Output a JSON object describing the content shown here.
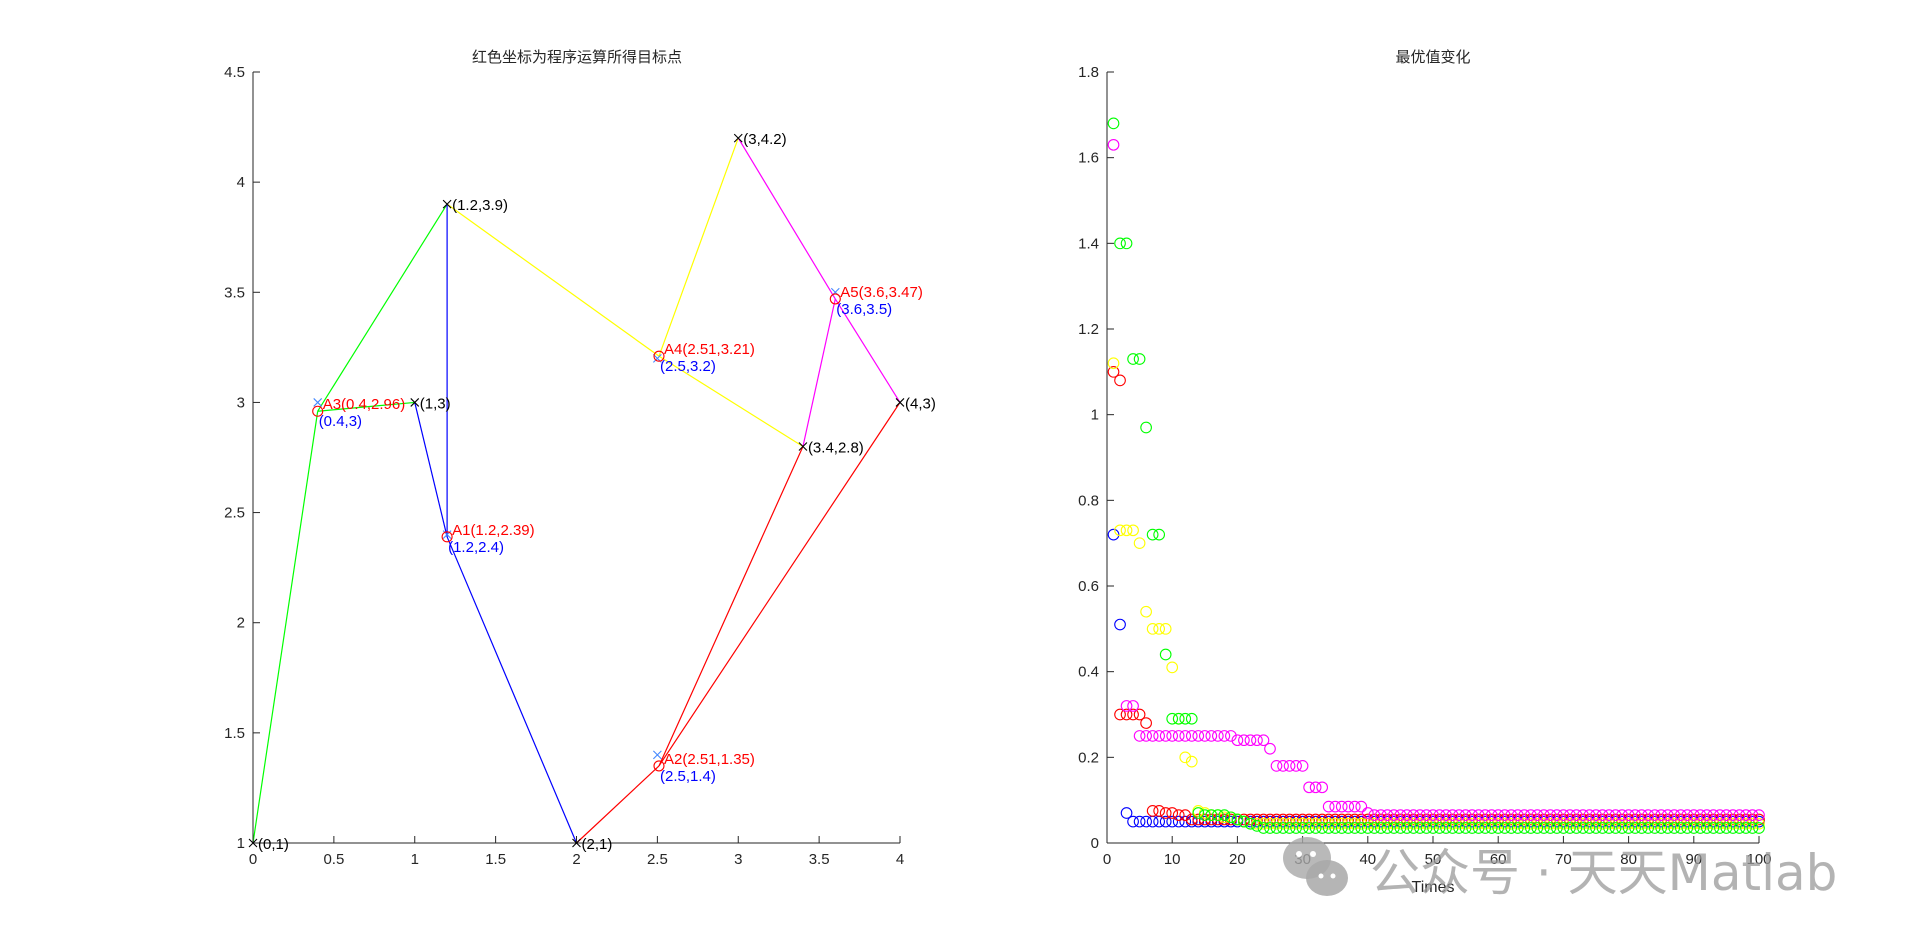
{
  "chart_data": [
    {
      "type": "line",
      "title": "红色坐标为程序运算所得目标点",
      "xlabel": "",
      "ylabel": "",
      "xlim": [
        0,
        4
      ],
      "ylim": [
        1,
        4.5
      ],
      "xticks": [
        "0",
        "0.5",
        "1",
        "1.5",
        "2",
        "2.5",
        "3",
        "3.5",
        "4"
      ],
      "yticks": [
        "1",
        "1.5",
        "2",
        "2.5",
        "3",
        "3.5",
        "4",
        "4.5"
      ],
      "grid": false,
      "fixed_points": [
        {
          "x": 0,
          "y": 1,
          "label": "(0,1)"
        },
        {
          "x": 1,
          "y": 3,
          "label": "(1,3)"
        },
        {
          "x": 1.2,
          "y": 3.9,
          "label": "(1.2,3.9)"
        },
        {
          "x": 2,
          "y": 1,
          "label": "(2,1)"
        },
        {
          "x": 3,
          "y": 4.2,
          "label": "(3,4.2)"
        },
        {
          "x": 3.4,
          "y": 2.8,
          "label": "(3.4,2.8)"
        },
        {
          "x": 4,
          "y": 3,
          "label": "(4,3)"
        }
      ],
      "computed_points": [
        {
          "name": "A1",
          "x": 1.2,
          "y": 2.39,
          "label": "A1(1.2,2.39)",
          "true_label": "(1.2,2.4)",
          "true_x": 1.2,
          "true_y": 2.4
        },
        {
          "name": "A2",
          "x": 2.51,
          "y": 1.35,
          "label": "A2(2.51,1.35)",
          "true_label": "(2.5,1.4)",
          "true_x": 2.5,
          "true_y": 1.4
        },
        {
          "name": "A3",
          "x": 0.4,
          "y": 2.96,
          "label": "A3(0.4,2.96)",
          "true_label": "(0.4,3)",
          "true_x": 0.4,
          "true_y": 3
        },
        {
          "name": "A4",
          "x": 2.51,
          "y": 3.21,
          "label": "A4(2.51,3.21)",
          "true_label": "(2.5,3.2)",
          "true_x": 2.5,
          "true_y": 3.2
        },
        {
          "name": "A5",
          "x": 3.6,
          "y": 3.47,
          "label": "A5(3.6,3.47)",
          "true_label": "(3.6,3.5)",
          "true_x": 3.6,
          "true_y": 3.5
        }
      ],
      "series": [
        {
          "name": "A3 links",
          "color": "#00ff00",
          "segments": [
            [
              [
                0,
                1
              ],
              [
                0.4,
                2.96
              ]
            ],
            [
              [
                0.4,
                2.96
              ],
              [
                1.2,
                3.9
              ]
            ],
            [
              [
                0.4,
                2.96
              ],
              [
                1,
                3
              ]
            ]
          ]
        },
        {
          "name": "A1 links",
          "color": "#0000ff",
          "segments": [
            [
              [
                1,
                3
              ],
              [
                1.2,
                2.39
              ]
            ],
            [
              [
                1.2,
                2.39
              ],
              [
                2,
                1
              ]
            ],
            [
              [
                1.2,
                3.9
              ],
              [
                1.2,
                2.39
              ]
            ]
          ]
        },
        {
          "name": "A4 links",
          "color": "#ffff00",
          "segments": [
            [
              [
                1.2,
                3.9
              ],
              [
                2.51,
                3.21
              ]
            ],
            [
              [
                2.51,
                3.21
              ],
              [
                3,
                4.2
              ]
            ],
            [
              [
                2.51,
                3.21
              ],
              [
                3.4,
                2.8
              ]
            ]
          ]
        },
        {
          "name": "A5 links",
          "color": "#ff00ff",
          "segments": [
            [
              [
                3,
                4.2
              ],
              [
                3.6,
                3.47
              ]
            ],
            [
              [
                3.6,
                3.47
              ],
              [
                4,
                3
              ]
            ],
            [
              [
                3.6,
                3.47
              ],
              [
                3.4,
                2.8
              ]
            ]
          ]
        },
        {
          "name": "A2 links",
          "color": "#ff0000",
          "segments": [
            [
              [
                2,
                1
              ],
              [
                2.51,
                1.35
              ]
            ],
            [
              [
                2.51,
                1.35
              ],
              [
                3.4,
                2.8
              ]
            ],
            [
              [
                2.51,
                1.35
              ],
              [
                4,
                3
              ]
            ]
          ]
        }
      ],
      "colors": {
        "computed_label": "#ff0000",
        "true_label": "#0000ff",
        "fixed_label": "#000000"
      }
    },
    {
      "type": "scatter",
      "title": "最优值变化",
      "xlabel": "Times",
      "ylabel": "",
      "xlim": [
        0,
        100
      ],
      "ylim": [
        0,
        1.8
      ],
      "xticks": [
        "0",
        "10",
        "20",
        "30",
        "40",
        "50",
        "60",
        "70",
        "80",
        "90",
        "100"
      ],
      "yticks": [
        "0",
        "0.2",
        "0.4",
        "0.6",
        "0.8",
        "1",
        "1.2",
        "1.4",
        "1.6",
        "1.8"
      ],
      "grid": false,
      "marker": "o",
      "series": [
        {
          "name": "blue",
          "color": "#0000ff",
          "points": [
            [
              1,
              0.72
            ],
            [
              2,
              0.51
            ],
            [
              3,
              0.07
            ],
            [
              4,
              0.05
            ],
            [
              5,
              0.05
            ],
            [
              6,
              0.05
            ],
            [
              7,
              0.05
            ],
            [
              8,
              0.05
            ],
            [
              9,
              0.05
            ],
            [
              10,
              0.05
            ],
            [
              11,
              0.05
            ],
            [
              12,
              0.05
            ],
            [
              13,
              0.05
            ],
            [
              14,
              0.05
            ],
            [
              15,
              0.05
            ],
            [
              16,
              0.05
            ],
            [
              17,
              0.05
            ],
            [
              18,
              0.05
            ],
            [
              19,
              0.05
            ],
            [
              20,
              0.05
            ]
          ],
          "tail_from": 21,
          "tail_value": 0.05
        },
        {
          "name": "red",
          "color": "#ff0000",
          "points": [
            [
              1,
              1.1
            ],
            [
              2,
              1.08
            ],
            [
              2,
              0.3
            ],
            [
              3,
              0.3
            ],
            [
              4,
              0.3
            ],
            [
              5,
              0.3
            ],
            [
              6,
              0.28
            ],
            [
              7,
              0.075
            ],
            [
              8,
              0.075
            ],
            [
              9,
              0.07
            ],
            [
              10,
              0.07
            ],
            [
              11,
              0.065
            ],
            [
              12,
              0.065
            ],
            [
              13,
              0.055
            ],
            [
              14,
              0.055
            ],
            [
              15,
              0.055
            ],
            [
              16,
              0.055
            ],
            [
              17,
              0.055
            ],
            [
              18,
              0.055
            ],
            [
              19,
              0.055
            ],
            [
              20,
              0.055
            ]
          ],
          "tail_from": 21,
          "tail_value": 0.055
        },
        {
          "name": "yellow",
          "color": "#ffff00",
          "points": [
            [
              1,
              1.12
            ],
            [
              2,
              0.73
            ],
            [
              3,
              0.73
            ],
            [
              4,
              0.73
            ],
            [
              5,
              0.7
            ],
            [
              6,
              0.54
            ],
            [
              7,
              0.5
            ],
            [
              8,
              0.5
            ],
            [
              9,
              0.5
            ],
            [
              10,
              0.41
            ],
            [
              11,
              0.29
            ],
            [
              12,
              0.2
            ],
            [
              13,
              0.19
            ],
            [
              14,
              0.075
            ],
            [
              15,
              0.07
            ],
            [
              16,
              0.065
            ],
            [
              17,
              0.065
            ],
            [
              18,
              0.06
            ],
            [
              19,
              0.06
            ],
            [
              20,
              0.055
            ],
            [
              21,
              0.05
            ],
            [
              22,
              0.045
            ]
          ],
          "tail_from": 23,
          "tail_value": 0.045
        },
        {
          "name": "green",
          "color": "#00ff00",
          "points": [
            [
              1,
              1.68
            ],
            [
              2,
              1.4
            ],
            [
              3,
              1.4
            ],
            [
              4,
              1.13
            ],
            [
              5,
              1.13
            ],
            [
              6,
              0.97
            ],
            [
              7,
              0.72
            ],
            [
              8,
              0.72
            ],
            [
              9,
              0.44
            ],
            [
              10,
              0.29
            ],
            [
              11,
              0.29
            ],
            [
              12,
              0.29
            ],
            [
              13,
              0.29
            ],
            [
              14,
              0.07
            ],
            [
              15,
              0.065
            ],
            [
              16,
              0.065
            ],
            [
              17,
              0.065
            ],
            [
              18,
              0.065
            ],
            [
              19,
              0.06
            ],
            [
              20,
              0.055
            ],
            [
              21,
              0.05
            ],
            [
              22,
              0.045
            ],
            [
              23,
              0.04
            ]
          ],
          "tail_from": 24,
          "tail_value": 0.035
        },
        {
          "name": "magenta",
          "color": "#ff00ff",
          "points": [
            [
              1,
              1.63
            ],
            [
              3,
              0.32
            ],
            [
              4,
              0.32
            ],
            [
              5,
              0.25
            ],
            [
              6,
              0.25
            ],
            [
              7,
              0.25
            ],
            [
              8,
              0.25
            ],
            [
              9,
              0.25
            ],
            [
              10,
              0.25
            ],
            [
              11,
              0.25
            ],
            [
              12,
              0.25
            ],
            [
              13,
              0.25
            ],
            [
              14,
              0.25
            ],
            [
              15,
              0.25
            ],
            [
              16,
              0.25
            ],
            [
              17,
              0.25
            ],
            [
              18,
              0.25
            ],
            [
              19,
              0.25
            ],
            [
              20,
              0.24
            ],
            [
              21,
              0.24
            ],
            [
              22,
              0.24
            ],
            [
              23,
              0.24
            ],
            [
              24,
              0.24
            ],
            [
              25,
              0.22
            ],
            [
              26,
              0.18
            ],
            [
              27,
              0.18
            ],
            [
              28,
              0.18
            ],
            [
              29,
              0.18
            ],
            [
              30,
              0.18
            ],
            [
              31,
              0.13
            ],
            [
              32,
              0.13
            ],
            [
              33,
              0.13
            ],
            [
              34,
              0.085
            ],
            [
              35,
              0.085
            ],
            [
              36,
              0.085
            ],
            [
              37,
              0.085
            ],
            [
              38,
              0.085
            ],
            [
              39,
              0.085
            ],
            [
              40,
              0.07
            ],
            [
              41,
              0.065
            ]
          ],
          "tail_from": 42,
          "tail_value": 0.065
        }
      ]
    }
  ],
  "watermark": {
    "text": "公众号 · 天天Matlab",
    "icon": "wechat-icon"
  }
}
